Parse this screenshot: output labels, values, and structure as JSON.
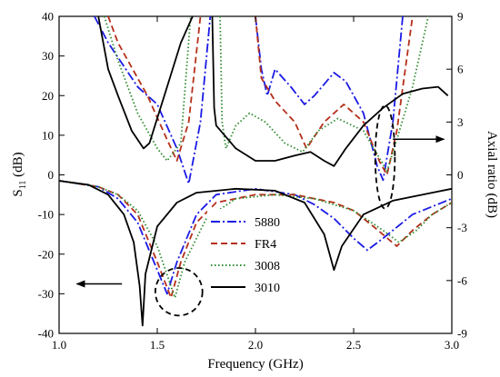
{
  "chart_data": {
    "type": "line",
    "title": "",
    "xlabel": "Frequency (GHz)",
    "ylabel": "S11 (dB)",
    "ylabel_main": "S",
    "ylabel_sub": "11",
    "ylabel_unit": " (dB)",
    "y2label": "Axial ratio (dB)",
    "y2label_main": "Axial ratio",
    "y2label_unit": "(dB)",
    "xlim": [
      1.0,
      3.0
    ],
    "ylim": [
      -40,
      40
    ],
    "y2lim": [
      -9,
      9
    ],
    "xticks": [
      1.0,
      1.5,
      2.0,
      2.5,
      3.0
    ],
    "xtick_labels": [
      "1.0",
      "1.5",
      "2.0",
      "2.5",
      "3.0"
    ],
    "yticks": [
      -40,
      -30,
      -20,
      -10,
      0,
      10,
      20,
      30,
      40
    ],
    "ytick_labels": [
      "-40",
      "-30",
      "-20",
      "-10",
      "0",
      "10",
      "20",
      "30",
      "40"
    ],
    "y2ticks": [
      -9,
      -6,
      -3,
      0,
      3,
      6,
      9
    ],
    "y2tick_labels": [
      "-9",
      "-6",
      "-3",
      "0",
      "3",
      "6",
      "9"
    ],
    "grid": false,
    "legend_position": "lower-center",
    "series": [
      {
        "name": "5880",
        "color": "#1a1ae6",
        "dash": "10,3,2,3",
        "s11": [
          [
            1.0,
            -1.5
          ],
          [
            1.2,
            -3
          ],
          [
            1.3,
            -6
          ],
          [
            1.4,
            -12
          ],
          [
            1.5,
            -24
          ],
          [
            1.55,
            -30
          ],
          [
            1.6,
            -22
          ],
          [
            1.7,
            -10
          ],
          [
            1.8,
            -5
          ],
          [
            2.0,
            -3.5
          ],
          [
            2.2,
            -5
          ],
          [
            2.3,
            -7.5
          ],
          [
            2.4,
            -11
          ],
          [
            2.5,
            -16
          ],
          [
            2.57,
            -19
          ],
          [
            2.65,
            -16
          ],
          [
            2.8,
            -10
          ],
          [
            2.9,
            -8
          ],
          [
            3.0,
            -6
          ]
        ],
        "ar": [
          [
            1.18,
            9
          ],
          [
            1.25,
            7.5
          ],
          [
            1.4,
            5
          ],
          [
            1.5,
            4
          ],
          [
            1.6,
            1.5
          ],
          [
            1.66,
            -0.5
          ],
          [
            1.72,
            3
          ],
          [
            1.77,
            9
          ]
        ],
        "ar2": [
          [
            2.0,
            9
          ],
          [
            2.03,
            6
          ],
          [
            2.06,
            4.5
          ],
          [
            2.1,
            6
          ],
          [
            2.18,
            5
          ],
          [
            2.25,
            4
          ],
          [
            2.3,
            4.5
          ],
          [
            2.4,
            5.8
          ],
          [
            2.46,
            5.3
          ],
          [
            2.55,
            3.5
          ],
          [
            2.62,
            0.5
          ],
          [
            2.65,
            -0.3
          ],
          [
            2.7,
            3
          ],
          [
            2.75,
            9
          ]
        ]
      },
      {
        "name": "FR4",
        "color": "#b5301a",
        "dash": "7,4",
        "s11": [
          [
            1.0,
            -1.5
          ],
          [
            1.2,
            -3
          ],
          [
            1.3,
            -5
          ],
          [
            1.4,
            -10
          ],
          [
            1.5,
            -22
          ],
          [
            1.57,
            -31
          ],
          [
            1.62,
            -22
          ],
          [
            1.7,
            -12
          ],
          [
            1.8,
            -7
          ],
          [
            2.0,
            -5
          ],
          [
            2.2,
            -5
          ],
          [
            2.4,
            -7
          ],
          [
            2.5,
            -9
          ],
          [
            2.6,
            -13
          ],
          [
            2.72,
            -18
          ],
          [
            2.8,
            -14
          ],
          [
            2.9,
            -10
          ],
          [
            3.0,
            -7
          ]
        ],
        "ar": [
          [
            1.25,
            9
          ],
          [
            1.3,
            7.5
          ],
          [
            1.45,
            4.5
          ],
          [
            1.55,
            2
          ],
          [
            1.6,
            0.8
          ],
          [
            1.66,
            3
          ],
          [
            1.72,
            9
          ]
        ],
        "ar2": [
          [
            2.0,
            9
          ],
          [
            2.03,
            5.5
          ],
          [
            2.1,
            4.2
          ],
          [
            2.2,
            3
          ],
          [
            2.26,
            1.5
          ],
          [
            2.35,
            3
          ],
          [
            2.45,
            4
          ],
          [
            2.55,
            3
          ],
          [
            2.63,
            0.8
          ],
          [
            2.67,
            0
          ],
          [
            2.72,
            2.5
          ],
          [
            2.8,
            9
          ]
        ]
      },
      {
        "name": "3008",
        "color": "#2e8b2e",
        "dash": "1.5,2.5",
        "s11": [
          [
            1.0,
            -1.5
          ],
          [
            1.2,
            -3
          ],
          [
            1.3,
            -5
          ],
          [
            1.4,
            -9
          ],
          [
            1.5,
            -18
          ],
          [
            1.59,
            -31
          ],
          [
            1.64,
            -22
          ],
          [
            1.75,
            -11
          ],
          [
            1.9,
            -6
          ],
          [
            2.1,
            -5
          ],
          [
            2.3,
            -6
          ],
          [
            2.5,
            -9
          ],
          [
            2.65,
            -14
          ],
          [
            2.73,
            -17
          ],
          [
            2.82,
            -14
          ],
          [
            2.9,
            -10
          ],
          [
            3.0,
            -7
          ]
        ],
        "ar": [
          [
            1.23,
            9
          ],
          [
            1.3,
            6.5
          ],
          [
            1.4,
            3.5
          ],
          [
            1.5,
            1.5
          ],
          [
            1.55,
            0.8
          ],
          [
            1.62,
            1.8
          ],
          [
            1.67,
            9
          ]
        ],
        "ar2": [
          [
            1.82,
            9
          ],
          [
            1.83,
            3
          ],
          [
            1.85,
            1.5
          ],
          [
            1.9,
            2.8
          ],
          [
            1.97,
            3.5
          ],
          [
            2.05,
            3
          ],
          [
            2.15,
            1.8
          ],
          [
            2.24,
            1.3
          ],
          [
            2.32,
            2.5
          ],
          [
            2.42,
            3.2
          ],
          [
            2.55,
            2.5
          ],
          [
            2.64,
            0.8
          ],
          [
            2.67,
            0.2
          ],
          [
            2.72,
            2
          ],
          [
            2.8,
            5
          ],
          [
            2.88,
            9
          ]
        ]
      },
      {
        "name": "3010",
        "color": "#000000",
        "dash": "",
        "s11": [
          [
            1.0,
            -1.5
          ],
          [
            1.15,
            -2.5
          ],
          [
            1.25,
            -5
          ],
          [
            1.33,
            -10
          ],
          [
            1.38,
            -17
          ],
          [
            1.41,
            -28
          ],
          [
            1.425,
            -38
          ],
          [
            1.44,
            -25
          ],
          [
            1.5,
            -13
          ],
          [
            1.6,
            -7
          ],
          [
            1.7,
            -4.5
          ],
          [
            1.9,
            -3.5
          ],
          [
            2.1,
            -4
          ],
          [
            2.25,
            -7
          ],
          [
            2.35,
            -15
          ],
          [
            2.4,
            -24
          ],
          [
            2.44,
            -18
          ],
          [
            2.55,
            -10
          ],
          [
            2.7,
            -6.5
          ],
          [
            2.9,
            -4.5
          ],
          [
            3.0,
            -3.5
          ]
        ],
        "ar": [
          [
            1.2,
            9
          ],
          [
            1.25,
            6
          ],
          [
            1.3,
            4.5
          ],
          [
            1.37,
            2.5
          ],
          [
            1.43,
            1.5
          ],
          [
            1.46,
            1.8
          ],
          [
            1.55,
            5
          ],
          [
            1.62,
            7.5
          ],
          [
            1.68,
            9
          ]
        ],
        "ar2": [
          [
            1.78,
            9
          ],
          [
            1.79,
            3.8
          ],
          [
            1.8,
            2.8
          ],
          [
            1.9,
            1.5
          ],
          [
            2.0,
            0.8
          ],
          [
            2.1,
            0.8
          ],
          [
            2.2,
            1.1
          ],
          [
            2.28,
            1.3
          ],
          [
            2.35,
            0.8
          ],
          [
            2.4,
            0.5
          ],
          [
            2.46,
            1.5
          ],
          [
            2.55,
            2.8
          ],
          [
            2.65,
            3.8
          ],
          [
            2.75,
            4.6
          ],
          [
            2.85,
            4.9
          ],
          [
            2.93,
            5
          ],
          [
            2.98,
            4.5
          ]
        ]
      }
    ],
    "annotations": [
      {
        "name": "s11-group-ellipse",
        "type": "ellipse",
        "cx": 1.61,
        "cy": -29.5,
        "rx": 0.12,
        "ry": 6
      },
      {
        "name": "s11-left-arrow",
        "type": "arrow",
        "from": [
          1.32,
          -27.5
        ],
        "to": [
          1.09,
          -27.5
        ]
      },
      {
        "name": "ar-group-ellipse",
        "type": "ellipse",
        "cx": 2.66,
        "cy": 4.5,
        "rx": 0.05,
        "ry": 13
      },
      {
        "name": "ar-right-arrow",
        "type": "arrow",
        "from": [
          2.7,
          9
        ],
        "to": [
          2.96,
          9
        ]
      }
    ]
  }
}
